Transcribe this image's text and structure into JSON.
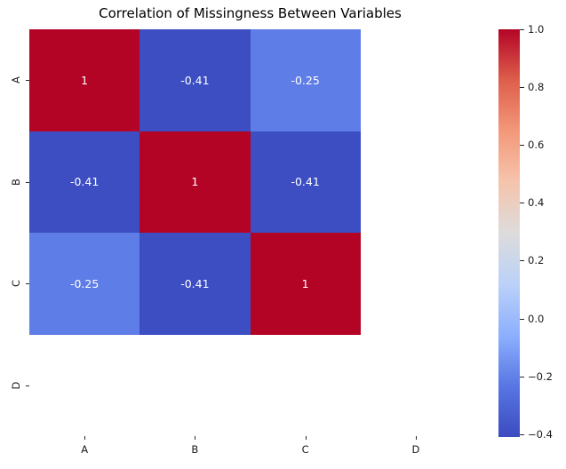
{
  "chart_data": {
    "type": "heatmap",
    "title": "Correlation of Missingness Between Variables",
    "x_categories": [
      "A",
      "B",
      "C",
      "D"
    ],
    "y_categories": [
      "A",
      "B",
      "C",
      "D"
    ],
    "matrix": [
      [
        1,
        -0.41,
        -0.25,
        null
      ],
      [
        -0.41,
        1,
        -0.41,
        null
      ],
      [
        -0.25,
        -0.41,
        1,
        null
      ],
      [
        null,
        null,
        null,
        null
      ]
    ],
    "cell_labels": [
      [
        "1",
        "-0.41",
        "-0.25",
        ""
      ],
      [
        "-0.41",
        "1",
        "-0.41",
        ""
      ],
      [
        "-0.25",
        "-0.41",
        "1",
        ""
      ],
      [
        "",
        "",
        "",
        ""
      ]
    ],
    "colormap": "coolwarm",
    "vmin": -0.41,
    "vmax": 1.0,
    "annotation_text_color": "#ffffff",
    "value_colors": {
      "1": "#b40426",
      "-0.41": "#3c4ec2",
      "-0.25": "#5f7de6",
      "null": "#ffffff"
    },
    "colorbar_gradient": [
      "#b40426",
      "#dd5f4b",
      "#f4987a",
      "#f5c4ac",
      "#dddcdc",
      "#bbd1f8",
      "#8db0fe",
      "#5876e3",
      "#3b4cc0"
    ],
    "colorbar_ticks": [
      {
        "label": "1.0",
        "value": 1.0
      },
      {
        "label": "0.8",
        "value": 0.8
      },
      {
        "label": "0.6",
        "value": 0.6
      },
      {
        "label": "0.4",
        "value": 0.4
      },
      {
        "label": "0.2",
        "value": 0.2
      },
      {
        "label": "0.0",
        "value": 0.0
      },
      {
        "label": "−0.2",
        "value": -0.2
      },
      {
        "label": "−0.4",
        "value": -0.4
      }
    ],
    "legend_position": "right",
    "grid": false
  }
}
